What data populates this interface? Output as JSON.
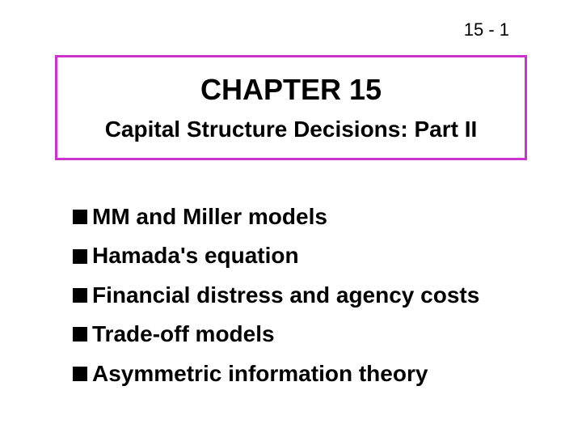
{
  "page_number": "15 - 1",
  "title_box": {
    "border_color": "#cc33cc",
    "chapter": "CHAPTER 15",
    "subtitle": "Capital Structure Decisions: Part II"
  },
  "bullets": [
    "MM and Miller models",
    "Hamada's equation",
    "Financial distress and agency costs",
    "Trade-off models",
    "Asymmetric information theory"
  ],
  "colors": {
    "background": "#ffffff",
    "text": "#000000",
    "bullet_fill": "#000000"
  },
  "fonts": {
    "page_number_size": 22,
    "chapter_title_size": 36,
    "subtitle_size": 28,
    "bullet_size": 28,
    "weight": "bold"
  }
}
